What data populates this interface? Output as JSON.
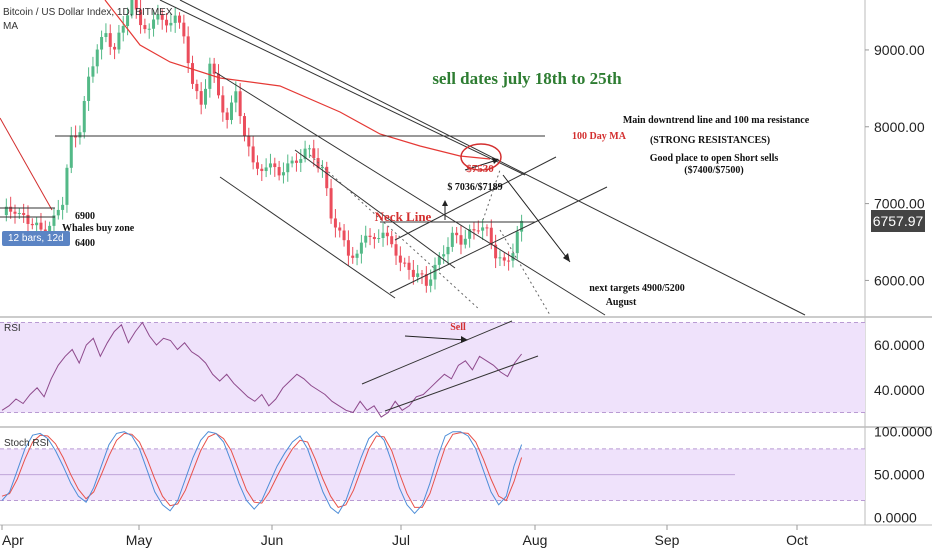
{
  "header": {
    "title": "Bitcoin / US Dollar Index, 1D, BITMEX",
    "indicator": "MA"
  },
  "panels": {
    "rsi_label": "RSI",
    "stoch_label": "Stoch RSI"
  },
  "price_tag": "6757.97",
  "bars_tag": "12 bars, 12d",
  "annotations": {
    "sell_dates": "sell dates july 18th to 25th",
    "main_downtrend": "Main downtrend line and 100 ma resistance",
    "strong_resistances": "(STRONG RESISTANCES)",
    "short_sells_1": "Good place to open Short sells",
    "short_sells_2": "($7400/$7500)",
    "ma_100": "100 Day  MA",
    "price_7530": "$7530",
    "targets_7036": "$ 7036/$7189",
    "neck_line": "Neck Line",
    "next_targets": "next targets 4900/5200",
    "august": "August",
    "whales_6900": "6900",
    "whales_buy": "Whales buy zone",
    "whales_6400": "6400",
    "rsi_sell": "Sell"
  },
  "colors": {
    "up": "#53b987",
    "down": "#eb4d5c",
    "ma": "#e53935",
    "rsi_band": "#efe2fb",
    "rsi_line": "#8e4a8c",
    "stoch_k": "#4e8ed8",
    "stoch_d": "#e8524a",
    "annotation_green": "#2e7d32",
    "annotation_red": "#d32f2f"
  },
  "chart_data": {
    "type": "candlestick",
    "title": "Bitcoin / US Dollar Index, 1D, BITMEX",
    "x_ticks": [
      "Apr",
      "May",
      "Jun",
      "Jul",
      "Aug",
      "Sep",
      "Oct"
    ],
    "y_ticks": [
      6000,
      7000,
      8000,
      9000
    ],
    "y_tick_labels": [
      "6000.00",
      "7000.00",
      "8000.00",
      "9000.00"
    ],
    "ylim": [
      5550,
      9650
    ],
    "last_price": 6757.97,
    "ma_100_label": "MA",
    "rsi": {
      "ticks": [
        40,
        60
      ],
      "tick_labels": [
        "40.0000",
        "60.0000"
      ],
      "ylim": [
        24,
        72
      ],
      "band": [
        30,
        70
      ],
      "values": [
        31,
        33,
        36,
        34,
        38,
        41,
        37,
        45,
        51,
        55,
        58,
        52,
        60,
        63,
        55,
        61,
        66,
        69,
        61,
        66,
        70,
        64,
        60,
        63,
        62,
        58,
        61,
        57,
        55,
        52,
        47,
        44,
        47,
        43,
        40,
        37,
        35,
        38,
        33,
        36,
        41,
        44,
        47,
        45,
        42,
        40,
        38,
        35,
        33,
        31,
        30,
        35,
        31,
        33,
        28,
        30,
        35,
        31,
        33,
        37,
        38,
        41,
        44,
        47,
        45,
        51,
        53,
        49,
        55,
        53,
        51,
        48,
        46,
        52,
        56
      ]
    },
    "stoch_rsi": {
      "ticks": [
        0,
        50,
        100
      ],
      "tick_labels": [
        "0.0000",
        "50.0000",
        "100.0000"
      ],
      "ylim": [
        -5,
        102
      ],
      "band": [
        20,
        80
      ],
      "k": [
        20,
        30,
        55,
        80,
        96,
        98,
        92,
        78,
        60,
        40,
        25,
        18,
        35,
        60,
        85,
        98,
        100,
        95,
        80,
        55,
        30,
        15,
        8,
        20,
        45,
        70,
        90,
        100,
        98,
        88,
        65,
        40,
        20,
        10,
        20,
        40,
        60,
        75,
        88,
        95,
        80,
        55,
        30,
        12,
        5,
        20,
        45,
        70,
        92,
        100,
        90,
        65,
        35,
        15,
        5,
        15,
        40,
        70,
        95,
        100,
        100,
        95,
        80,
        55,
        30,
        15,
        25,
        60,
        85
      ],
      "d": [
        25,
        28,
        45,
        68,
        88,
        96,
        95,
        86,
        70,
        50,
        33,
        22,
        30,
        50,
        72,
        90,
        98,
        97,
        88,
        68,
        45,
        25,
        14,
        16,
        32,
        55,
        78,
        94,
        98,
        92,
        78,
        55,
        32,
        18,
        17,
        30,
        48,
        65,
        80,
        90,
        88,
        68,
        45,
        25,
        12,
        15,
        32,
        56,
        80,
        95,
        94,
        78,
        52,
        28,
        12,
        12,
        28,
        55,
        82,
        97,
        99,
        98,
        88,
        68,
        45,
        25,
        20,
        42,
        70
      ]
    }
  }
}
